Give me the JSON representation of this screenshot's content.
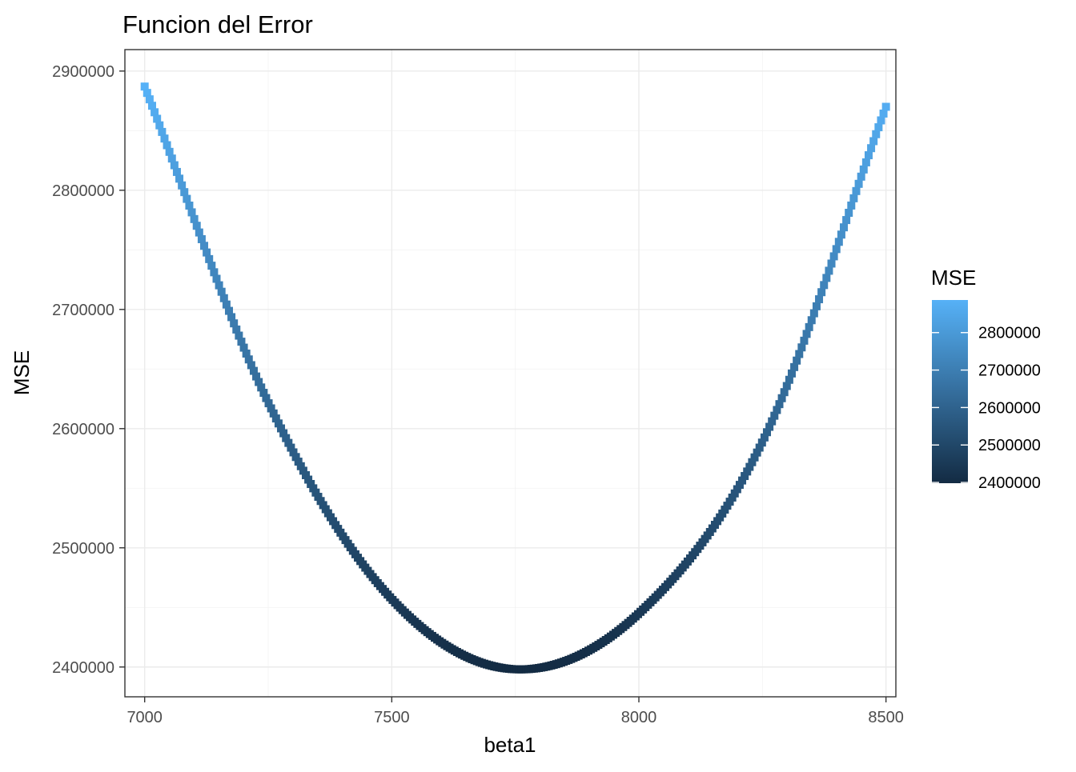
{
  "chart_data": {
    "type": "scatter",
    "title": "Funcion del Error",
    "xlabel": "beta1",
    "ylabel": "MSE",
    "xlim": [
      6960,
      8520
    ],
    "ylim": [
      2375000,
      2918000
    ],
    "x_ticks": [
      7000,
      7500,
      8000,
      8500
    ],
    "x_tick_labels": [
      "7000",
      "7500",
      "8000",
      "8500"
    ],
    "y_ticks": [
      2400000,
      2500000,
      2600000,
      2700000,
      2800000,
      2900000
    ],
    "y_tick_labels": [
      "2400000",
      "2500000",
      "2600000",
      "2700000",
      "2800000",
      "2900000"
    ],
    "grid": true,
    "curve": {
      "x_range": [
        7000,
        8500
      ],
      "point_count": 300,
      "minimum": {
        "x": 7760,
        "y": 2398000
      },
      "samples": [
        {
          "x": 7000,
          "y": 2887000
        },
        {
          "x": 7250,
          "y": 2622000
        },
        {
          "x": 7500,
          "y": 2457000
        },
        {
          "x": 7760,
          "y": 2398000
        },
        {
          "x": 8000,
          "y": 2445000
        },
        {
          "x": 8250,
          "y": 2589000
        },
        {
          "x": 8500,
          "y": 2870000
        }
      ]
    },
    "legend": {
      "title": "MSE",
      "placement": "right",
      "range": [
        2398000,
        2887000
      ],
      "ticks": [
        2400000,
        2500000,
        2600000,
        2700000,
        2800000
      ],
      "tick_labels": [
        "2400000",
        "2500000",
        "2600000",
        "2700000",
        "2800000"
      ],
      "color_low": "#132B43",
      "color_high": "#56B1F7"
    }
  }
}
